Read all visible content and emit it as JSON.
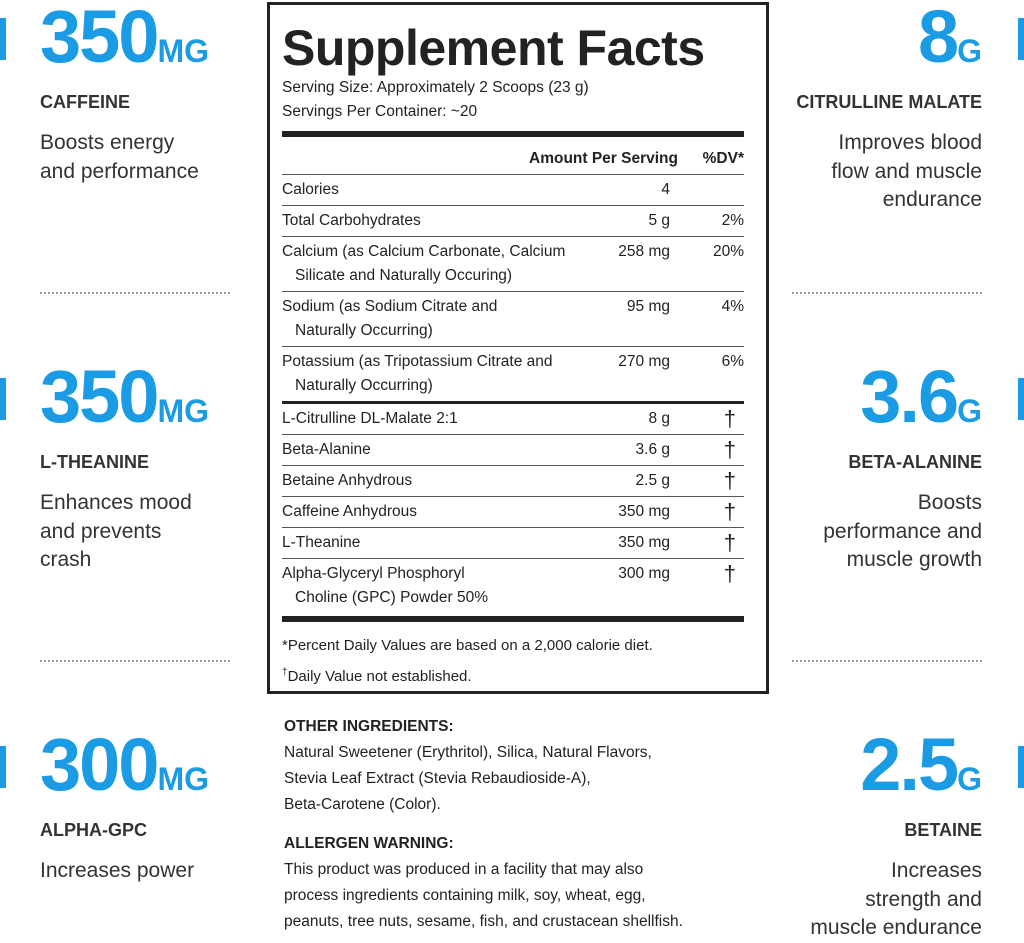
{
  "left_features": [
    {
      "amount": "350",
      "unit": "MG",
      "name": "CAFFEINE",
      "description": [
        "Boosts energy",
        "and performance"
      ]
    },
    {
      "amount": "350",
      "unit": "MG",
      "name": "L-THEANINE",
      "description": [
        "Enhances mood",
        "and prevents",
        "crash"
      ]
    },
    {
      "amount": "300",
      "unit": "MG",
      "name": "ALPHA-GPC",
      "description": [
        "Increases power"
      ]
    }
  ],
  "right_features": [
    {
      "amount": "8",
      "unit": "G",
      "name": "CITRULLINE MALATE",
      "description": [
        "Improves blood",
        "flow and muscle",
        "endurance"
      ]
    },
    {
      "amount": "3.6",
      "unit": "G",
      "name": "BETA-ALANINE",
      "description": [
        "Boosts",
        "performance and",
        "muscle growth"
      ]
    },
    {
      "amount": "2.5",
      "unit": "G",
      "name": "BETAINE",
      "description": [
        "Increases",
        "strength and",
        "muscle endurance"
      ]
    }
  ],
  "facts": {
    "title": "Supplement Facts",
    "serving_size": "Serving Size: Approximately 2 Scoops (23 g)",
    "servings_per_container": "Servings Per Container: ~20",
    "header": [
      "Amount Per Serving",
      "%DV*"
    ],
    "rows": [
      {
        "name": [
          "Calories"
        ],
        "amount": "4",
        "dv": ""
      },
      {
        "name": [
          "Total Carbohydrates"
        ],
        "amount": "5 g",
        "dv": "2%"
      },
      {
        "name": [
          "Calcium (as Calcium Carbonate, Calcium",
          "Silicate and Naturally Occuring)"
        ],
        "amount": "258 mg",
        "dv": "20%"
      },
      {
        "name": [
          "Sodium (as Sodium Citrate and",
          "Naturally Occurring)"
        ],
        "amount": "95 mg",
        "dv": "4%"
      },
      {
        "name": [
          "Potassium (as Tripotassium Citrate and",
          "Naturally Occurring)"
        ],
        "amount": "270 mg",
        "dv": "6%"
      },
      {
        "name": [
          "L-Citrulline DL-Malate 2:1"
        ],
        "amount": "8 g",
        "dv": "†"
      },
      {
        "name": [
          "Beta-Alanine"
        ],
        "amount": "3.6 g",
        "dv": "†"
      },
      {
        "name": [
          "Betaine Anhydrous"
        ],
        "amount": "2.5 g",
        "dv": "†"
      },
      {
        "name": [
          "Caffeine Anhydrous"
        ],
        "amount": "350 mg",
        "dv": "†"
      },
      {
        "name": [
          "L-Theanine"
        ],
        "amount": "350 mg",
        "dv": "†"
      },
      {
        "name": [
          "Alpha-Glyceryl Phosphoryl",
          "Choline (GPC) Powder 50%"
        ],
        "amount": "300 mg",
        "dv": "†"
      }
    ],
    "footnote_dv": "*Percent Daily Values are based on a 2,000 calorie diet.",
    "footnote_dagger_mark": "†",
    "footnote_dagger": "Daily Value not established."
  },
  "other_ingredients": {
    "heading": "OTHER INGREDIENTS:",
    "lines": [
      "Natural Sweetener (Erythritol), Silica, Natural Flavors,",
      "Stevia Leaf Extract (Stevia Rebaudioside-A),",
      "Beta-Carotene (Color)."
    ]
  },
  "allergen_warning": {
    "heading": "ALLERGEN WARNING:",
    "lines": [
      "This product was produced in a facility that may also",
      "process ingredients containing milk, soy, wheat, egg,",
      "peanuts, tree nuts, sesame, fish, and crustacean shellfish."
    ]
  }
}
